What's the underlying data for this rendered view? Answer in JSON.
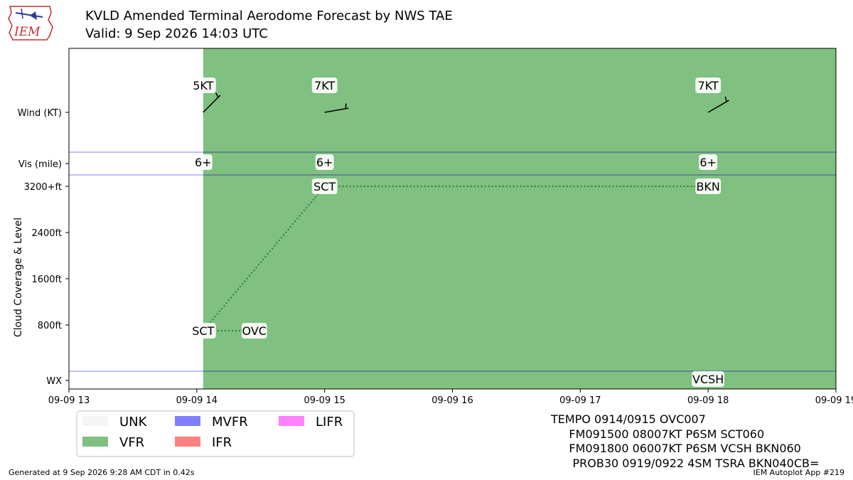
{
  "header": {
    "title": "KVLD Amended Terminal Aerodome Forecast by NWS TAE",
    "subtitle": "Valid: 9 Sep 2026 14:03 UTC",
    "logo_text": "IEM"
  },
  "footer": {
    "generated": "Generated at 9 Sep 2026 9:28 AM CDT in 0.42s",
    "app": "IEM Autoplot App #219"
  },
  "taf_text": [
    "TEMPO 0914/0915 OVC007",
    "     FM091500 08007KT P6SM SCT060",
    "     FM091800 06007KT P6SM VCSH BKN060",
    "      PROB30 0919/0922 4SM TSRA BKN040CB="
  ],
  "colors": {
    "UNK": "#f5f5f5",
    "VFR": "#80c080",
    "MVFR": "#8080ff",
    "IFR": "#ff8080",
    "LIFR": "#ff80ff",
    "wind": "#000000",
    "cloud_line": "#2e7d32"
  },
  "chart_data": {
    "type": "timeline",
    "x_ticks": [
      "09-09 13",
      "09-09 14",
      "09-09 15",
      "09-09 16",
      "09-09 17",
      "09-09 18",
      "09-09 19"
    ],
    "x_range_hours": [
      13,
      19
    ],
    "ylabel": "Cloud Coverage & Level",
    "row_labels": {
      "wind": "Wind (KT)",
      "vis": "Vis (mile)",
      "wx": "WX"
    },
    "cloud_ticks": [
      "800ft",
      "1600ft",
      "2400ft",
      "3200+ft"
    ],
    "cloud_tick_values": [
      800,
      1600,
      2400,
      3200
    ],
    "flight_category": [
      {
        "start": 14.05,
        "end": 19,
        "category": "VFR"
      }
    ],
    "wind": [
      {
        "time": 14.05,
        "speed_kt": 5,
        "label": "5KT",
        "dir_deg": 45
      },
      {
        "time": 15.0,
        "speed_kt": 7,
        "label": "7KT",
        "dir_deg": 80
      },
      {
        "time": 18.0,
        "speed_kt": 7,
        "label": "7KT",
        "dir_deg": 60
      }
    ],
    "visibility": [
      {
        "time": 14.05,
        "label": "6+"
      },
      {
        "time": 15.0,
        "label": "6+"
      },
      {
        "time": 18.0,
        "label": "6+"
      }
    ],
    "clouds": [
      {
        "time": 14.05,
        "level_ft": 700,
        "label": "SCT"
      },
      {
        "time": 14.45,
        "level_ft": 700,
        "label": "OVC"
      },
      {
        "time": 15.0,
        "level_ft": 3200,
        "label": "SCT"
      },
      {
        "time": 18.0,
        "level_ft": 3200,
        "label": "BKN"
      }
    ],
    "cloud_lines": [
      {
        "from": 0,
        "to": 1
      },
      {
        "from": 0,
        "to": 2
      },
      {
        "from": 2,
        "to": 3
      }
    ],
    "weather": [
      {
        "time": 18.0,
        "label": "VCSH"
      }
    ],
    "legend": {
      "position": "bottom-left",
      "items": [
        "UNK",
        "VFR",
        "MVFR",
        "IFR",
        "LIFR"
      ]
    }
  }
}
